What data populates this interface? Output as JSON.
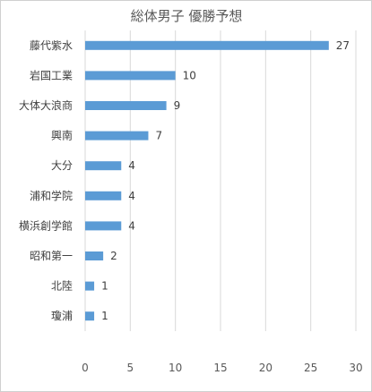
{
  "chart_data": {
    "type": "bar",
    "orientation": "horizontal",
    "title": "総体男子 優勝予想",
    "categories": [
      "藤代紫水",
      "岩国工業",
      "大体大浪商",
      "興南",
      "大分",
      "浦和学院",
      "横浜創学館",
      "昭和第一",
      "北陸",
      "瓊浦"
    ],
    "values": [
      27,
      10,
      9,
      7,
      4,
      4,
      4,
      2,
      1,
      1
    ],
    "xlim": [
      0,
      30
    ],
    "xticks": [
      0,
      5,
      10,
      15,
      20,
      25,
      30
    ],
    "grid": true,
    "bar_color": "#5b9bd5",
    "data_labels": true
  }
}
